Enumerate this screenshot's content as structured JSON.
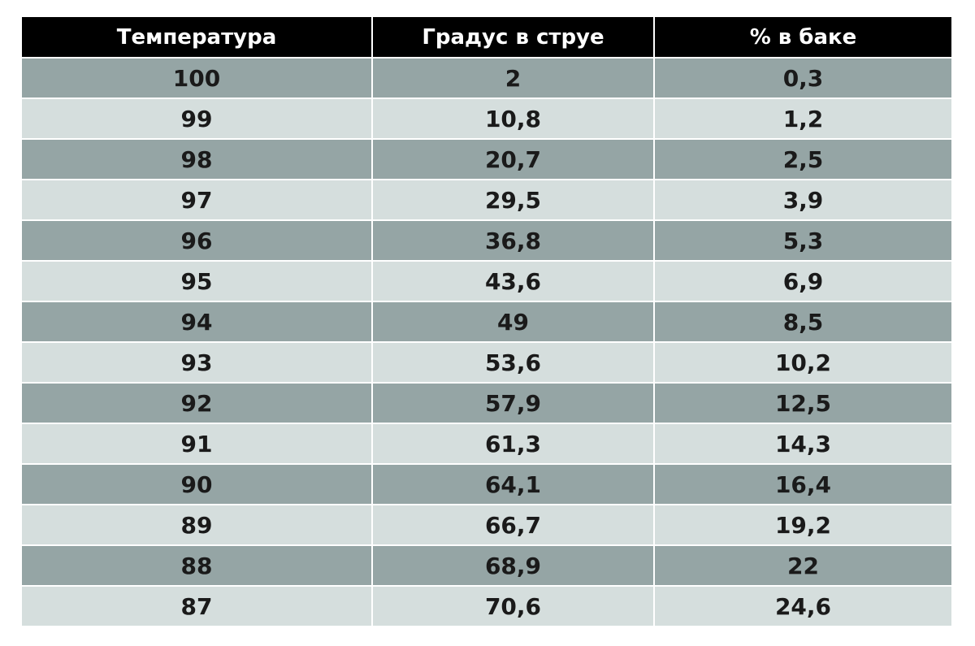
{
  "table": {
    "headers": [
      "Температура",
      "Градус в струе",
      "% в баке"
    ],
    "rows": [
      [
        "100",
        "2",
        "0,3"
      ],
      [
        "99",
        "10,8",
        "1,2"
      ],
      [
        "98",
        "20,7",
        "2,5"
      ],
      [
        "97",
        "29,5",
        "3,9"
      ],
      [
        "96",
        "36,8",
        "5,3"
      ],
      [
        "95",
        "43,6",
        "6,9"
      ],
      [
        "94",
        "49",
        "8,5"
      ],
      [
        "93",
        "53,6",
        "10,2"
      ],
      [
        "92",
        "57,9",
        "12,5"
      ],
      [
        "91",
        "61,3",
        "14,3"
      ],
      [
        "90",
        "64,1",
        "16,4"
      ],
      [
        "89",
        "66,7",
        "19,2"
      ],
      [
        "88",
        "68,9",
        "22"
      ],
      [
        "87",
        "70,6",
        "24,6"
      ]
    ]
  },
  "colors": {
    "header_bg": "#000000",
    "header_text": "#ffffff",
    "row_dark": "#95a5a5",
    "row_light": "#d5dedd",
    "cell_text": "#1a1a1a"
  }
}
